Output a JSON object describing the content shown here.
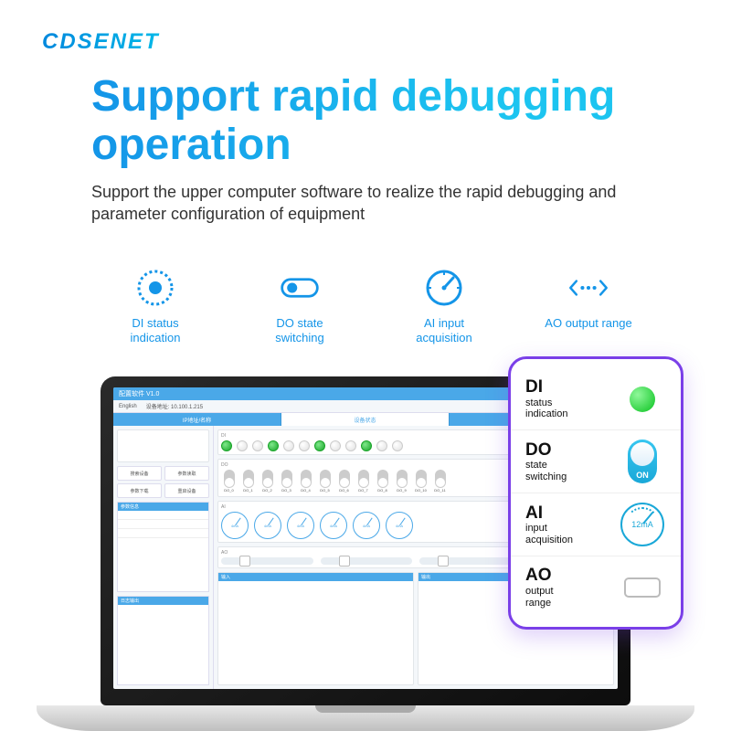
{
  "brand": "CDSENET",
  "headline": "Support rapid debugging operation",
  "subheadline": "Support the upper computer software to realize the rapid debugging and parameter configuration of equipment",
  "colors": {
    "brand_gradient_start": "#0088dd",
    "brand_gradient_end": "#00b8e8",
    "headline_gradient_start": "#1495e8",
    "headline_gradient_end": "#1cc4f0",
    "feature_text": "#1495e8",
    "callout_border": "#7a3fe8",
    "green": "#09c21f",
    "toggle": "#1aa8d8"
  },
  "features": [
    {
      "name": "di-status-feature",
      "label": "DI status indication",
      "icon": "dotted-circle"
    },
    {
      "name": "do-state-feature",
      "label": "DO state switching",
      "icon": "toggle"
    },
    {
      "name": "ai-input-feature",
      "label": "AI input acquisition",
      "icon": "gauge"
    },
    {
      "name": "ao-output-feature",
      "label": "AO output range",
      "icon": "range-arrows"
    }
  ],
  "screen": {
    "titlebar": "配置软件 V1.0",
    "toolbar_left": "English",
    "toolbar_right": "设备地址: 10.100.1.215",
    "tabs": [
      "IP地址/名称",
      "设备状态",
      "参数设置"
    ],
    "active_tab": 0,
    "left": {
      "buttons": [
        "搜索设备",
        "参数读取",
        "参数下载",
        "重启设备"
      ],
      "section1_title": "参数信息",
      "section1_sub": "Modbus 地址",
      "section2_title": "日志输出"
    },
    "panels": {
      "di_label": "DI",
      "di_names": [
        "DI_0",
        "DI_1",
        "DI_2",
        "DI_3",
        "DI_4",
        "DI_5",
        "DI_6",
        "DI_7",
        "DI_8",
        "DI_9",
        "DI_10",
        "DI_11"
      ],
      "do_label": "DO",
      "do_names": [
        "DO_0",
        "DO_1",
        "DO_2",
        "DO_3",
        "DO_4",
        "DO_5",
        "DO_6",
        "DO_7",
        "DO_8",
        "DO_9",
        "DO_10",
        "DO_11"
      ],
      "ai_label": "AI",
      "ai_gauge_text": "4mA",
      "ai_names": [
        "AI_0",
        "AI_1",
        "AI_2",
        "AI_3",
        "AI_4",
        "AI_5"
      ],
      "ao_label": "AO",
      "ao_names": [
        "AO_0",
        "AO_1",
        "AO_2",
        "AO_3"
      ]
    },
    "bottom_panel_a": "输入",
    "bottom_panel_b": "输出"
  },
  "callout": {
    "rows": [
      {
        "big": "DI",
        "line1": "status",
        "line2": "indication",
        "vis": "dot",
        "name": "callout-di"
      },
      {
        "big": "DO",
        "line1": "state",
        "line2": "switching",
        "vis": "toggle",
        "toggle_text": "ON",
        "name": "callout-do"
      },
      {
        "big": "AI",
        "line1": "input",
        "line2": "acquisition",
        "vis": "gauge",
        "gauge_text": "12mA",
        "name": "callout-ai"
      },
      {
        "big": "AO",
        "line1": "output",
        "line2": "range",
        "vis": "range",
        "name": "callout-ao"
      }
    ]
  }
}
